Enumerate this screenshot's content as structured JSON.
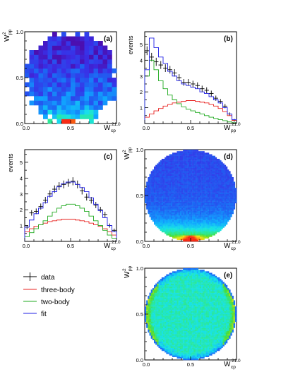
{
  "colors": {
    "data": "#000000",
    "three_body": "#e8201f",
    "two_body": "#1faa1f",
    "fit": "#1f1fe6",
    "heatmap_scale": [
      "#4b0fb0",
      "#3a2ee6",
      "#1e62f2",
      "#10a6ff",
      "#18e2e8",
      "#2ae89c",
      "#46dd3a",
      "#9ee21c",
      "#f0e418",
      "#ff9a10",
      "#f72a14"
    ]
  },
  "legend": {
    "items": [
      {
        "key": "data",
        "label": "data"
      },
      {
        "key": "three_body",
        "label": "three-body"
      },
      {
        "key": "two_body",
        "label": "two-body"
      },
      {
        "key": "fit",
        "label": "fit"
      }
    ]
  },
  "panels": {
    "a": {
      "tag": "(a)",
      "xlabel_main": "W",
      "xlabel_sub": "cp",
      "xlabel_sup": "2",
      "ylabel_main": "W",
      "ylabel_sub": "pp",
      "ylabel_sup": "2",
      "xticks": [
        "0.0",
        "0.5",
        "1.0"
      ],
      "yticks": [
        "0.0",
        "0.5",
        "1.0"
      ]
    },
    "b": {
      "tag": "(b)",
      "ylabel": "events",
      "xlabel_main": "W",
      "xlabel_sub": "pp",
      "xlabel_sup": "2",
      "xticks": [
        "0.0",
        "0.5",
        "1.0"
      ],
      "yticks": [
        "1",
        "2",
        "3",
        "4",
        "5"
      ]
    },
    "c": {
      "tag": "(c)",
      "ylabel": "events",
      "xlabel_main": "W",
      "xlabel_sub": "cp",
      "xlabel_sup": "2",
      "xticks": [
        "0.0",
        "0.5",
        "1.0"
      ],
      "yticks": [
        "1",
        "2",
        "3",
        "4",
        "5"
      ]
    },
    "d": {
      "tag": "(d)",
      "xlabel_main": "W",
      "xlabel_sub": "cp",
      "xlabel_sup": "2",
      "ylabel_main": "W",
      "ylabel_sub": "pp",
      "ylabel_sup": "2",
      "xticks": [
        "0.0",
        "0.5",
        "1.0"
      ],
      "yticks": [
        "0.0",
        "0.5",
        "1.0"
      ]
    },
    "e": {
      "tag": "(e)",
      "xlabel_main": "W",
      "xlabel_sub": "cp",
      "xlabel_sup": "2",
      "ylabel_main": "W",
      "ylabel_sub": "pp",
      "ylabel_sup": "2",
      "xticks": [
        "0.0",
        "0.5",
        "1.0"
      ],
      "yticks": [
        "0.0",
        "0.5",
        "1.0"
      ]
    }
  },
  "chart_data": [
    {
      "panel": "a",
      "type": "heatmap",
      "xlabel": "W²cp",
      "ylabel": "W²pp",
      "xlim": [
        0,
        1
      ],
      "ylim": [
        0,
        1
      ],
      "grid_bins": [
        20,
        20
      ],
      "note": "sparse event density, higher toward low W²pp, peak near W²cp=0.5, W²pp≈0"
    },
    {
      "panel": "b",
      "type": "line",
      "xlabel": "W²pp",
      "ylabel": "events",
      "xlim": [
        0,
        1
      ],
      "ylim": [
        0,
        5.8
      ],
      "x": [
        0.025,
        0.075,
        0.125,
        0.175,
        0.225,
        0.275,
        0.325,
        0.375,
        0.425,
        0.475,
        0.525,
        0.575,
        0.625,
        0.675,
        0.725,
        0.775,
        0.825,
        0.875,
        0.925,
        0.975
      ],
      "series": [
        {
          "name": "data",
          "key": "data",
          "values": [
            4.6,
            4.2,
            3.9,
            3.7,
            3.5,
            3.4,
            3.2,
            2.9,
            2.6,
            2.6,
            2.5,
            2.4,
            2.2,
            2.1,
            1.9,
            1.6,
            1.4,
            1.1,
            0.6,
            0.2
          ]
        },
        {
          "name": "three-body",
          "key": "three_body",
          "values": [
            0.4,
            0.6,
            0.8,
            0.95,
            1.1,
            1.2,
            1.3,
            1.35,
            1.4,
            1.45,
            1.45,
            1.4,
            1.35,
            1.3,
            1.2,
            1.1,
            0.95,
            0.75,
            0.5,
            0.2
          ]
        },
        {
          "name": "two-body",
          "key": "two_body",
          "values": [
            3.0,
            4.0,
            3.4,
            2.7,
            2.2,
            1.8,
            1.5,
            1.25,
            1.05,
            0.9,
            0.8,
            0.7,
            0.6,
            0.5,
            0.4,
            0.32,
            0.25,
            0.18,
            0.1,
            0.05
          ]
        },
        {
          "name": "fit",
          "key": "fit",
          "values": [
            3.4,
            5.4,
            4.8,
            4.2,
            3.8,
            3.3,
            3.0,
            2.7,
            2.5,
            2.4,
            2.3,
            2.2,
            2.0,
            1.9,
            1.7,
            1.5,
            1.3,
            1.0,
            0.6,
            0.25
          ]
        }
      ]
    },
    {
      "panel": "c",
      "type": "line",
      "xlabel": "W²cp",
      "ylabel": "events",
      "xlim": [
        0,
        1
      ],
      "ylim": [
        0,
        5.8
      ],
      "x": [
        0.025,
        0.075,
        0.125,
        0.175,
        0.225,
        0.275,
        0.325,
        0.375,
        0.425,
        0.475,
        0.525,
        0.575,
        0.625,
        0.675,
        0.725,
        0.775,
        0.825,
        0.875,
        0.925,
        0.975
      ],
      "series": [
        {
          "name": "data",
          "key": "data",
          "values": [
            0.9,
            1.8,
            1.9,
            2.2,
            2.6,
            3.0,
            3.3,
            3.5,
            3.6,
            3.7,
            3.8,
            3.6,
            3.2,
            2.8,
            2.6,
            2.3,
            2.0,
            1.7,
            1.0,
            0.7
          ]
        },
        {
          "name": "three-body",
          "key": "three_body",
          "values": [
            0.6,
            0.8,
            0.95,
            1.05,
            1.15,
            1.25,
            1.3,
            1.35,
            1.4,
            1.4,
            1.4,
            1.35,
            1.3,
            1.25,
            1.15,
            1.05,
            0.95,
            0.8,
            0.6,
            0.4
          ]
        },
        {
          "name": "two-body",
          "key": "two_body",
          "values": [
            0.3,
            0.55,
            0.8,
            1.05,
            1.3,
            1.6,
            1.85,
            2.1,
            2.25,
            2.35,
            2.35,
            2.25,
            2.1,
            1.9,
            1.6,
            1.3,
            1.0,
            0.7,
            0.4,
            0.2
          ]
        },
        {
          "name": "fit",
          "key": "fit",
          "values": [
            0.9,
            1.35,
            1.75,
            2.1,
            2.45,
            2.85,
            3.15,
            3.45,
            3.65,
            3.75,
            3.75,
            3.6,
            3.4,
            3.15,
            2.75,
            2.35,
            1.95,
            1.5,
            1.0,
            0.6
          ]
        }
      ]
    },
    {
      "panel": "d",
      "type": "heatmap",
      "xlabel": "W²cp",
      "ylabel": "W²pp",
      "xlim": [
        0,
        1
      ],
      "ylim": [
        0,
        1
      ],
      "region": "circle",
      "note": "uniform blue disc with density rising toward W²pp=0, peak (yellow/red) near W²cp=0.5, W²pp≈0"
    },
    {
      "panel": "e",
      "type": "heatmap",
      "xlabel": "W²cp",
      "ylabel": "W²pp",
      "xlim": [
        0,
        1
      ],
      "ylim": [
        0,
        1
      ],
      "region": "circle",
      "note": "roughly uniform green disc with yellow/red enhancement along the left and right rims and blue at the edge"
    }
  ]
}
